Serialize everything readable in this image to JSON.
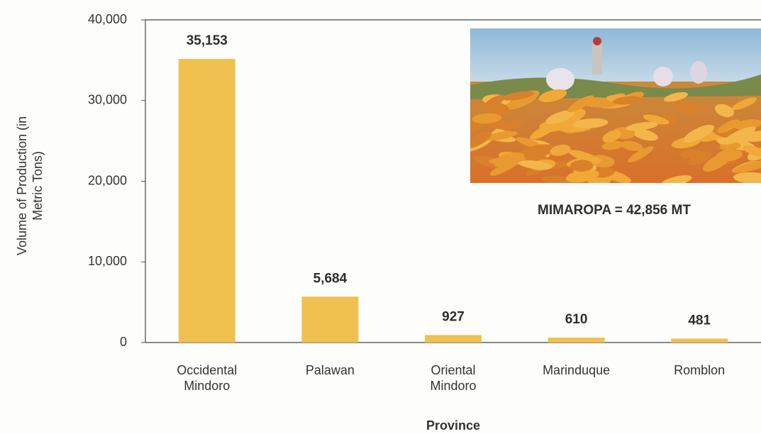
{
  "chart_data": {
    "type": "bar",
    "categories": [
      "Occidental Mindoro",
      "Palawan",
      "Oriental Mindoro",
      "Marinduque",
      "Romblon"
    ],
    "values": [
      35153,
      5684,
      927,
      610,
      481
    ],
    "value_labels": [
      "35,153",
      "5,684",
      "927",
      "610",
      "481"
    ],
    "color": "#f0c050",
    "ylim": [
      0,
      40000
    ],
    "yticks": [
      0,
      {
        "value": 10000,
        "label": "10,000"
      },
      {
        "value": 20000,
        "label": "20,000"
      },
      {
        "value": 30000,
        "label": "30,000"
      },
      {
        "value": 40000,
        "label": "40,000"
      }
    ],
    "ylabel": "Volume of Production (in Metric Tons)",
    "xlabel": "Province",
    "annotation": "MIMAROPA = 42,856 MT"
  }
}
